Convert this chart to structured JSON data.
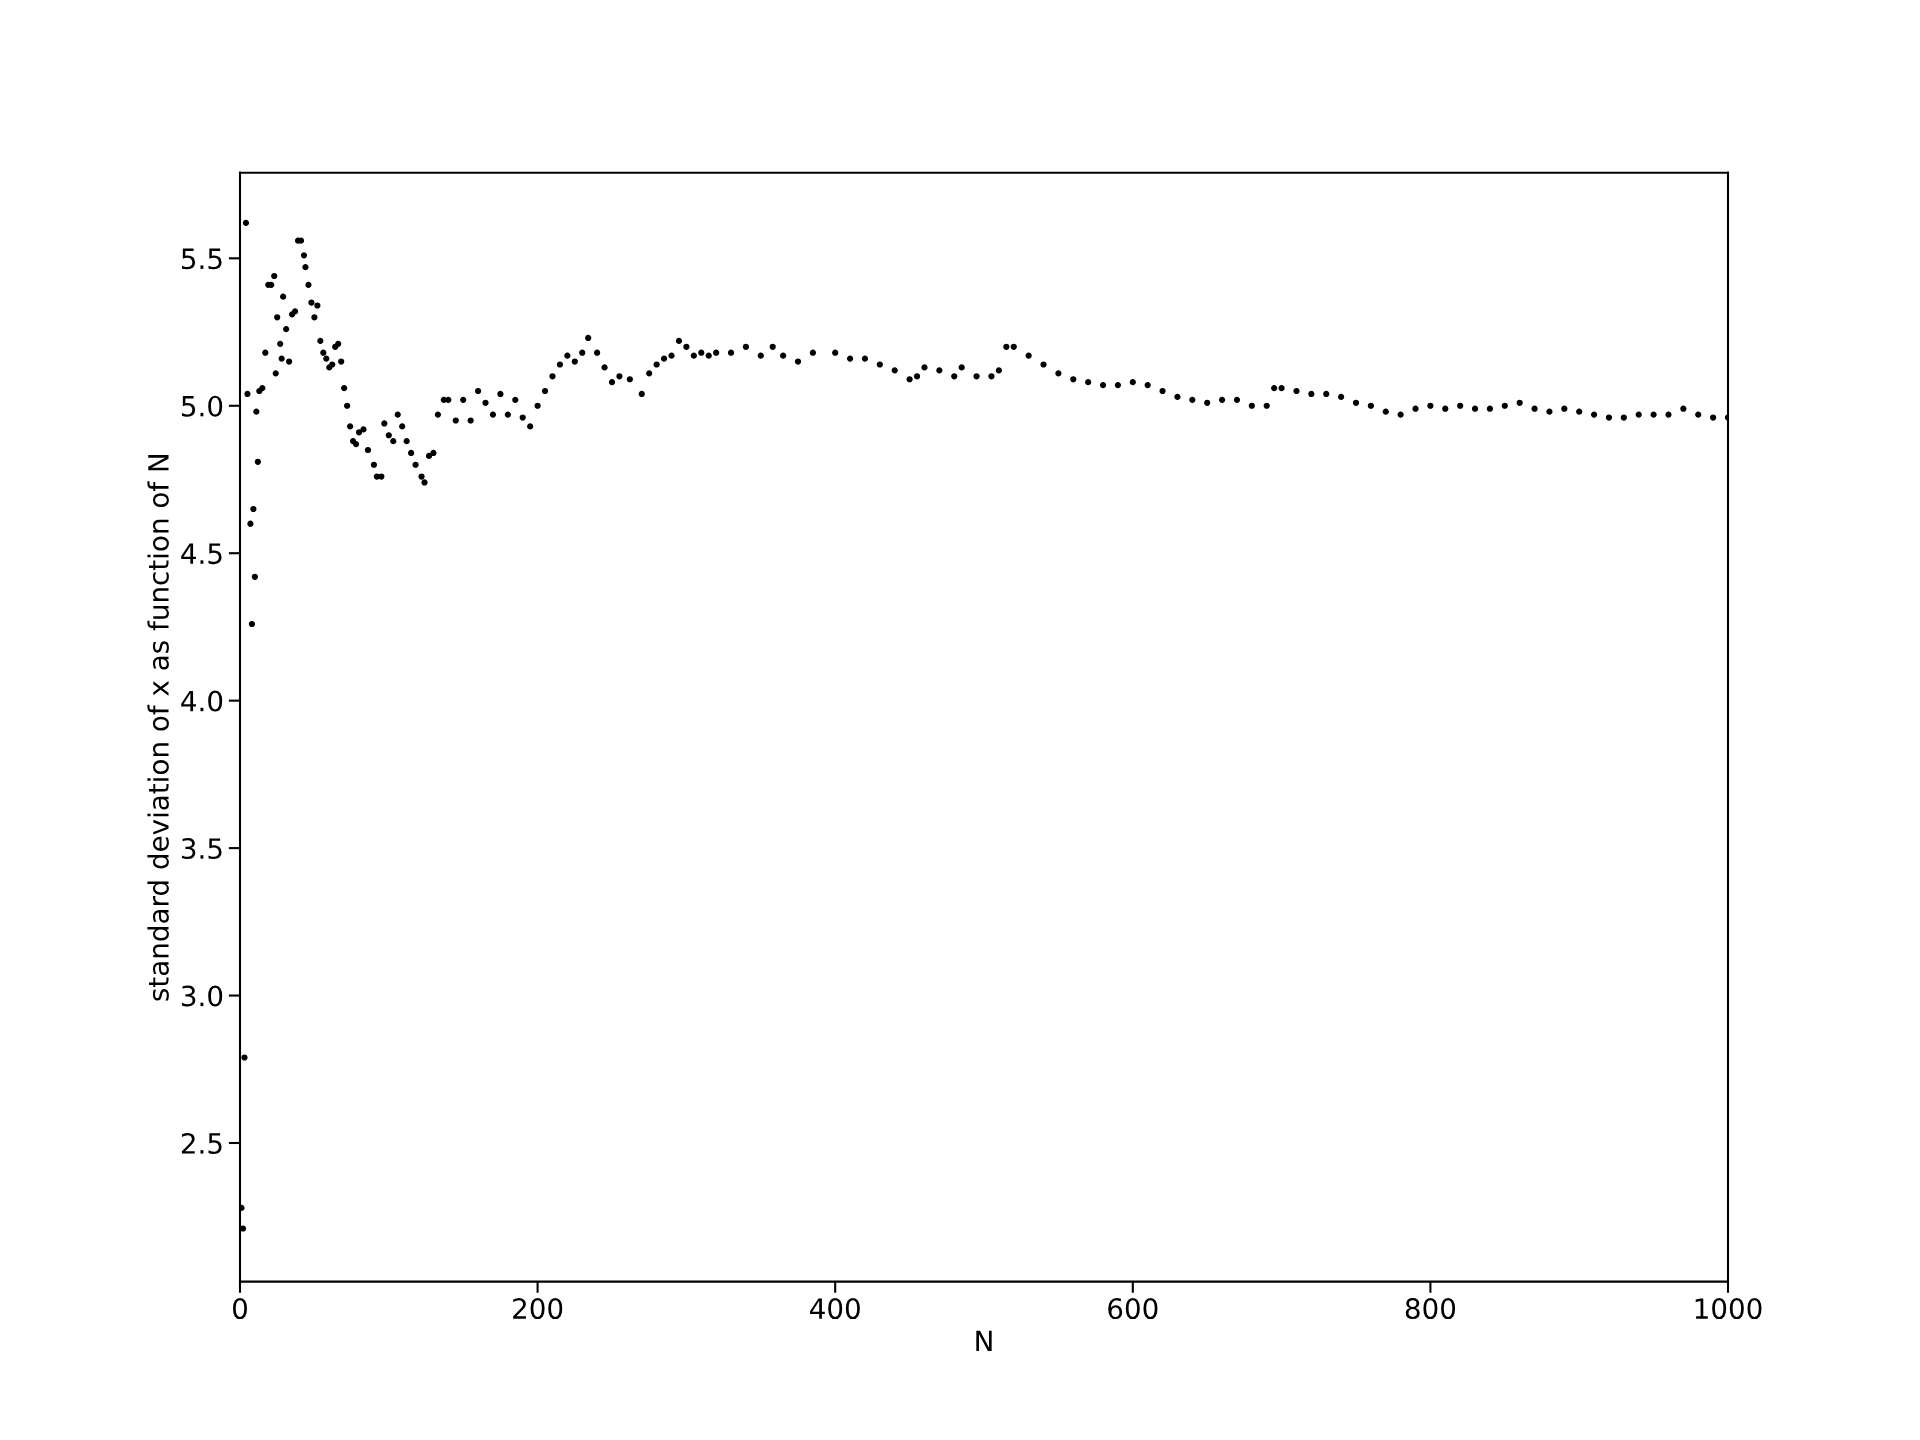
{
  "chart_data": {
    "type": "scatter",
    "xlabel": "N",
    "ylabel": "standard deviation of x as function of N",
    "xlim": [
      0,
      1000
    ],
    "xticks": [
      0,
      200,
      400,
      600,
      800,
      1000
    ],
    "ylim": [
      2.03,
      5.79
    ],
    "yticks": [
      2.5,
      {
        "value": 3,
        "label": "3.0"
      },
      3.5,
      {
        "value": 4,
        "label": "4.0"
      },
      4.5,
      {
        "value": 5,
        "label": "5.0"
      },
      5.5
    ],
    "grid": false,
    "marker": "circle",
    "series": [
      {
        "color": "#000000",
        "x": [
          1,
          2,
          3,
          4,
          5,
          7,
          8,
          9,
          10,
          11,
          12,
          13,
          15,
          17,
          19,
          21,
          23,
          24,
          25,
          27,
          28,
          29,
          31,
          33,
          35,
          37,
          39,
          41,
          43,
          44,
          46,
          48,
          50,
          52,
          54,
          56,
          58,
          60,
          62,
          64,
          66,
          68,
          70,
          72,
          74,
          76,
          78,
          80,
          83,
          86,
          90,
          92,
          95,
          97,
          100,
          103,
          106,
          109,
          112,
          115,
          118,
          122,
          124,
          127,
          130,
          133,
          137,
          140,
          145,
          150,
          155,
          160,
          165,
          170,
          175,
          180,
          185,
          190,
          195,
          200,
          205,
          210,
          215,
          220,
          225,
          230,
          234,
          240,
          245,
          250,
          255,
          262,
          270,
          275,
          280,
          285,
          290,
          295,
          300,
          305,
          310,
          315,
          320,
          330,
          340,
          350,
          358,
          365,
          375,
          385,
          400,
          410,
          420,
          430,
          440,
          450,
          455,
          460,
          470,
          480,
          485,
          495,
          505,
          510,
          515,
          520,
          530,
          540,
          550,
          560,
          570,
          580,
          590,
          600,
          610,
          620,
          630,
          640,
          650,
          660,
          670,
          680,
          690,
          695,
          700,
          710,
          720,
          730,
          740,
          750,
          760,
          770,
          780,
          790,
          800,
          810,
          820,
          830,
          840,
          850,
          860,
          870,
          880,
          890,
          900,
          910,
          920,
          930,
          940,
          950,
          960,
          970,
          980,
          990,
          1000
        ],
        "values": [
          2.28,
          2.21,
          2.79,
          5.62,
          5.04,
          4.6,
          4.26,
          4.65,
          4.42,
          4.98,
          4.81,
          5.05,
          5.06,
          5.18,
          5.41,
          5.41,
          5.44,
          5.11,
          5.3,
          5.21,
          5.16,
          5.37,
          5.26,
          5.15,
          5.31,
          5.32,
          5.56,
          5.56,
          5.51,
          5.47,
          5.41,
          5.35,
          5.3,
          5.34,
          5.22,
          5.18,
          5.16,
          5.13,
          5.14,
          5.2,
          5.21,
          5.15,
          5.06,
          5.0,
          4.93,
          4.88,
          4.87,
          4.91,
          4.92,
          4.85,
          4.8,
          4.76,
          4.76,
          4.94,
          4.9,
          4.88,
          4.97,
          4.93,
          4.88,
          4.84,
          4.8,
          4.76,
          4.74,
          4.83,
          4.84,
          4.97,
          5.02,
          5.02,
          4.95,
          5.02,
          4.95,
          5.05,
          5.01,
          4.97,
          5.04,
          4.97,
          5.02,
          4.96,
          4.93,
          5.0,
          5.05,
          5.1,
          5.14,
          5.17,
          5.15,
          5.18,
          5.23,
          5.18,
          5.13,
          5.08,
          5.1,
          5.09,
          5.04,
          5.11,
          5.14,
          5.16,
          5.17,
          5.22,
          5.2,
          5.17,
          5.18,
          5.17,
          5.18,
          5.18,
          5.2,
          5.17,
          5.2,
          5.17,
          5.15,
          5.18,
          5.18,
          5.16,
          5.16,
          5.14,
          5.12,
          5.09,
          5.1,
          5.13,
          5.12,
          5.1,
          5.13,
          5.1,
          5.1,
          5.12,
          5.2,
          5.2,
          5.17,
          5.14,
          5.11,
          5.09,
          5.08,
          5.07,
          5.07,
          5.08,
          5.07,
          5.05,
          5.03,
          5.02,
          5.01,
          5.02,
          5.02,
          5.0,
          5.0,
          5.06,
          5.06,
          5.05,
          5.04,
          5.04,
          5.03,
          5.01,
          5.0,
          4.98,
          4.97,
          4.99,
          5.0,
          4.99,
          5.0,
          4.99,
          4.99,
          5.0,
          5.01,
          4.99,
          4.98,
          4.99,
          4.98,
          4.97,
          4.96,
          4.96,
          4.97,
          4.97,
          4.97,
          4.99,
          4.97,
          4.96,
          4.96
        ]
      }
    ]
  }
}
